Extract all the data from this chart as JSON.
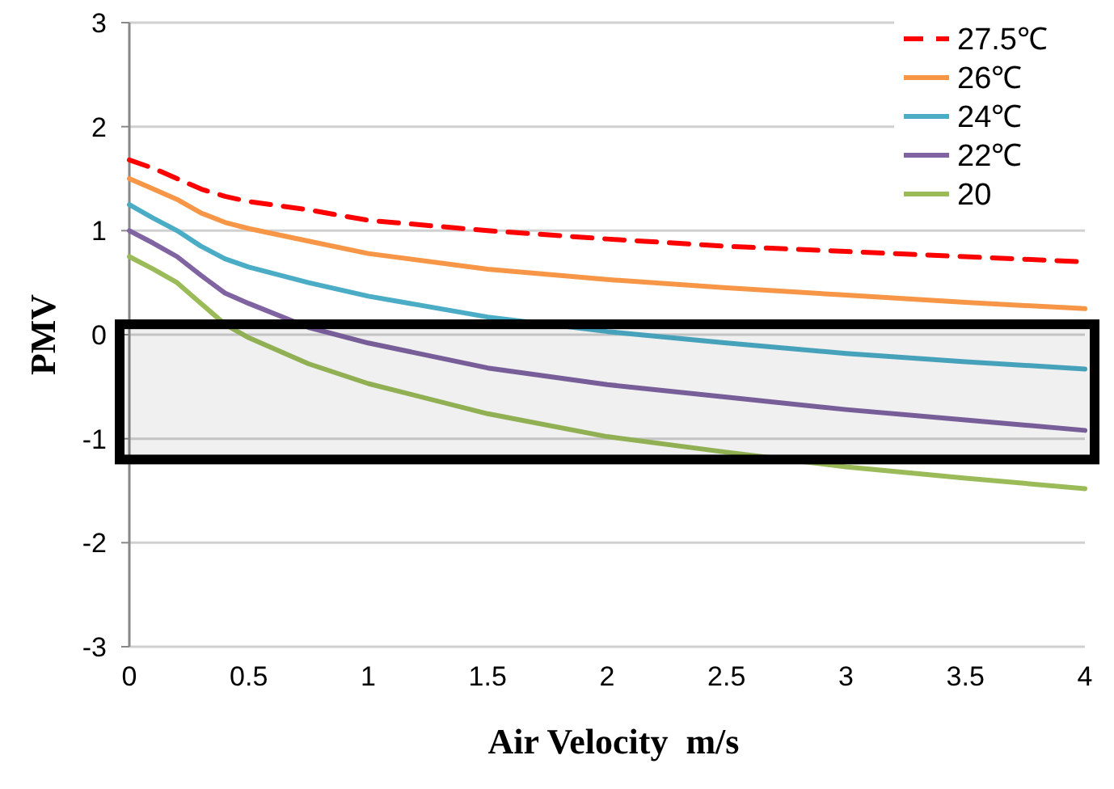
{
  "chart_data": {
    "type": "line",
    "xlabel": "Air Velocity  m/s",
    "ylabel": "PMV",
    "x": [
      0,
      0.1,
      0.2,
      0.3,
      0.4,
      0.5,
      0.75,
      1,
      1.5,
      2,
      2.5,
      3,
      3.5,
      4
    ],
    "series": [
      {
        "name": "27.5℃",
        "color": "#ff0000",
        "line_style": "dashed",
        "values": [
          1.68,
          1.6,
          1.5,
          1.4,
          1.33,
          1.28,
          1.2,
          1.1,
          1.0,
          0.92,
          0.85,
          0.8,
          0.75,
          0.7
        ]
      },
      {
        "name": "26℃",
        "color": "#f79646",
        "values": [
          1.5,
          1.4,
          1.3,
          1.17,
          1.08,
          1.02,
          0.9,
          0.78,
          0.63,
          0.53,
          0.45,
          0.38,
          0.31,
          0.25
        ]
      },
      {
        "name": "24℃",
        "color": "#4bacc6",
        "values": [
          1.25,
          1.12,
          1.0,
          0.85,
          0.73,
          0.65,
          0.5,
          0.37,
          0.17,
          0.03,
          -0.08,
          -0.18,
          -0.26,
          -0.33
        ]
      },
      {
        "name": "22℃",
        "color": "#8064a2",
        "values": [
          1.0,
          0.88,
          0.75,
          0.57,
          0.4,
          0.3,
          0.07,
          -0.08,
          -0.32,
          -0.48,
          -0.6,
          -0.72,
          -0.82,
          -0.92
        ]
      },
      {
        "name": "20",
        "color": "#9bbb59",
        "values": [
          0.75,
          0.63,
          0.5,
          0.3,
          0.1,
          -0.03,
          -0.28,
          -0.47,
          -0.76,
          -0.98,
          -1.13,
          -1.27,
          -1.38,
          -1.48
        ]
      }
    ],
    "xlim": [
      0,
      4
    ],
    "xticks": [
      0,
      0.5,
      1,
      1.5,
      2,
      2.5,
      3,
      3.5,
      4
    ],
    "ylim": [
      -3,
      3
    ],
    "yticks": [
      -3,
      -2,
      -1,
      0,
      1,
      2,
      3
    ],
    "grid": "y",
    "legend": "top right",
    "marker": "none",
    "line_style": "solid",
    "bands": [
      {
        "axis": "y",
        "from": -1.2,
        "to": 0.1,
        "color": "#000000"
      }
    ]
  }
}
